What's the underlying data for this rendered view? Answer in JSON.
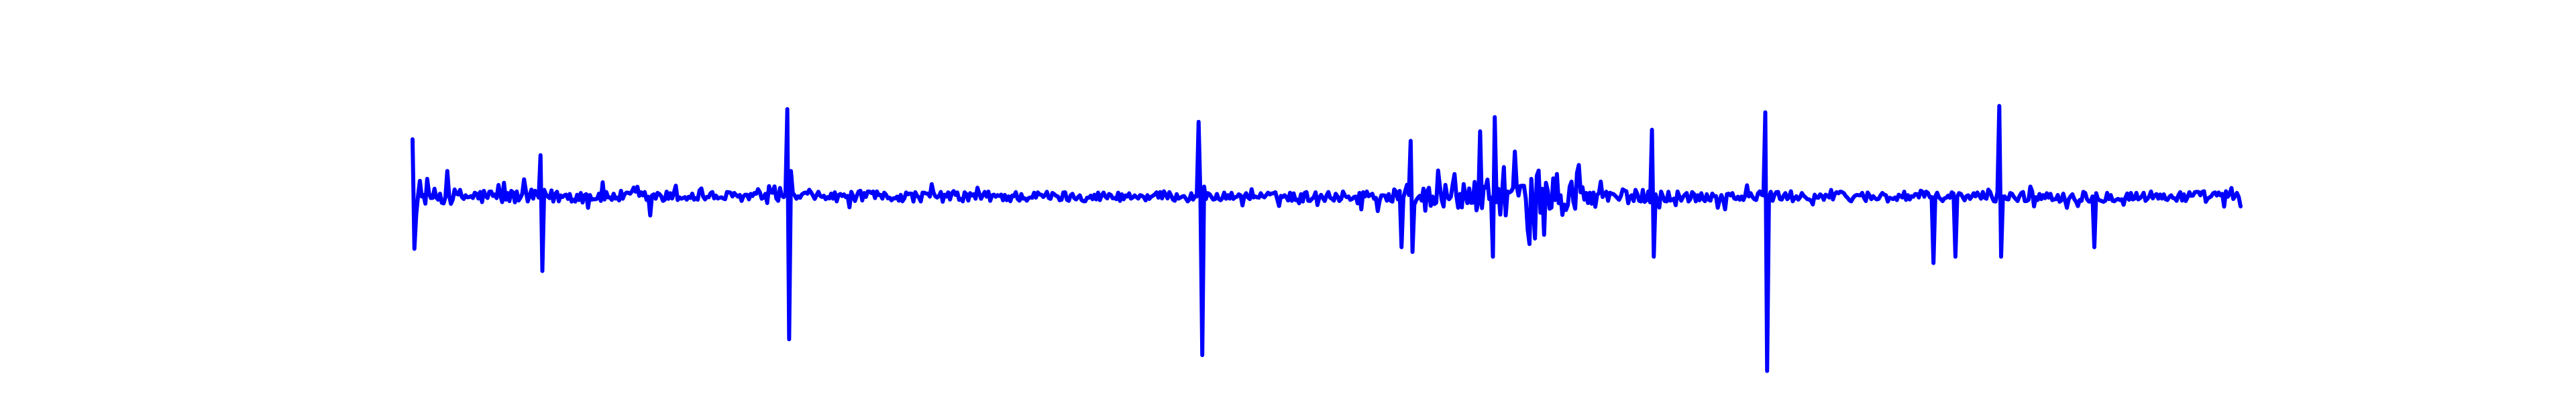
{
  "chart_data": {
    "type": "line",
    "title": "",
    "xlabel": "",
    "ylabel": "",
    "grid": false,
    "axes_visible": false,
    "legend": "none",
    "xlim": [
      0,
      1000
    ],
    "ylim": [
      -1.0,
      0.9
    ],
    "series": [
      {
        "color": "#0000ff",
        "x_start": 0,
        "x_step": 1,
        "noise_profile": [
          [
            0,
            0.05
          ],
          [
            60,
            0.045
          ],
          [
            120,
            0.035
          ],
          [
            200,
            0.028
          ],
          [
            300,
            0.035
          ],
          [
            460,
            0.025
          ],
          [
            520,
            0.035
          ],
          [
            560,
            0.07
          ],
          [
            590,
            0.11
          ],
          [
            600,
            0.14
          ],
          [
            640,
            0.12
          ],
          [
            650,
            0.05
          ],
          [
            700,
            0.035
          ],
          [
            830,
            0.03
          ],
          [
            900,
            0.035
          ],
          [
            1000,
            0.035
          ]
        ],
        "spikes": [
          {
            "x": 0,
            "value": 0.36
          },
          {
            "x": 1,
            "value": -0.33
          },
          {
            "x": 19,
            "value": 0.16
          },
          {
            "x": 70,
            "value": 0.26
          },
          {
            "x": 71,
            "value": -0.47
          },
          {
            "x": 130,
            "value": -0.12
          },
          {
            "x": 205,
            "value": 0.55
          },
          {
            "x": 206,
            "value": -0.9
          },
          {
            "x": 207,
            "value": 0.16
          },
          {
            "x": 430,
            "value": 0.47
          },
          {
            "x": 432,
            "value": -1.0
          },
          {
            "x": 541,
            "value": -0.32
          },
          {
            "x": 546,
            "value": 0.35
          },
          {
            "x": 547,
            "value": -0.35
          },
          {
            "x": 584,
            "value": 0.41
          },
          {
            "x": 591,
            "value": -0.38
          },
          {
            "x": 592,
            "value": 0.5
          },
          {
            "x": 611,
            "value": -0.3
          },
          {
            "x": 678,
            "value": 0.42
          },
          {
            "x": 679,
            "value": -0.38
          },
          {
            "x": 740,
            "value": 0.53
          },
          {
            "x": 741,
            "value": -1.1
          },
          {
            "x": 832,
            "value": -0.42
          },
          {
            "x": 844,
            "value": -0.38
          },
          {
            "x": 868,
            "value": 0.57
          },
          {
            "x": 869,
            "value": -0.38
          },
          {
            "x": 920,
            "value": -0.32
          }
        ],
        "n_points": 1001
      }
    ]
  }
}
